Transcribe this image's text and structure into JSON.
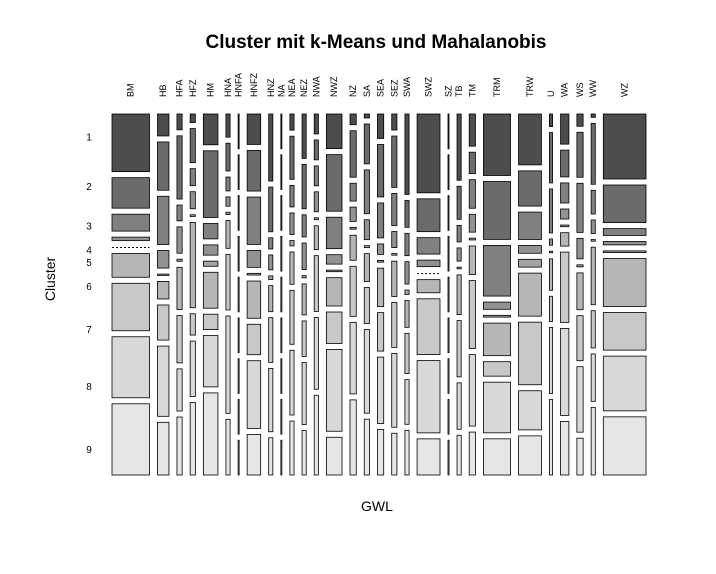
{
  "chart_data": {
    "type": "mosaic",
    "title": "Cluster mit k-Means und Mahalanobis",
    "xlabel": "GWL",
    "ylabel": "Cluster",
    "columns": [
      {
        "name": "BM",
        "width": 36
      },
      {
        "name": "HB",
        "width": 11
      },
      {
        "name": "HFA",
        "width": 5
      },
      {
        "name": "HFZ",
        "width": 5
      },
      {
        "name": "HM",
        "width": 14
      },
      {
        "name": "HNA",
        "width": 4
      },
      {
        "name": "HNFA",
        "width": 1
      },
      {
        "name": "HNFZ",
        "width": 13
      },
      {
        "name": "HNZ",
        "width": 4
      },
      {
        "name": "NA",
        "width": 1
      },
      {
        "name": "NEA",
        "width": 4
      },
      {
        "name": "NEZ",
        "width": 4
      },
      {
        "name": "NWA",
        "width": 4
      },
      {
        "name": "NWZ",
        "width": 15
      },
      {
        "name": "NZ",
        "width": 6
      },
      {
        "name": "SA",
        "width": 5
      },
      {
        "name": "SEA",
        "width": 6
      },
      {
        "name": "SEZ",
        "width": 5
      },
      {
        "name": "SWA",
        "width": 4
      },
      {
        "name": "SWZ",
        "width": 22
      },
      {
        "name": "SZ",
        "width": 1
      },
      {
        "name": "TB",
        "width": 4
      },
      {
        "name": "TM",
        "width": 6
      },
      {
        "name": "TRM",
        "width": 26
      },
      {
        "name": "TRW",
        "width": 22
      },
      {
        "name": "U",
        "width": 3
      },
      {
        "name": "WA",
        "width": 8
      },
      {
        "name": "WS",
        "width": 6
      },
      {
        "name": "WW",
        "width": 4
      },
      {
        "name": "WZ",
        "width": 41
      }
    ],
    "rows": [
      "1",
      "2",
      "3",
      "4",
      "5",
      "6",
      "7",
      "8",
      "9"
    ],
    "row_label_rows": [
      "1",
      "2",
      "3",
      "4",
      "5",
      "6",
      "7",
      "8",
      "9"
    ],
    "row_colors": [
      "#4d4d4d",
      "#6b6b6b",
      "#808080",
      "#929292",
      "#a4a4a4",
      "#b6b6b6",
      "#c8c8c8",
      "#d8d8d8",
      "#e6e6e6"
    ],
    "proportions": [
      [
        17,
        9,
        5,
        1,
        0.3,
        7,
        14,
        18,
        21
      ],
      [
        5,
        11,
        11,
        4,
        0.3,
        4,
        8,
        16,
        12
      ],
      [
        3,
        12,
        3,
        5,
        0.4,
        8,
        9,
        8,
        11
      ],
      [
        2,
        8,
        4,
        4,
        0.4,
        20,
        5,
        13,
        17
      ],
      [
        6,
        13,
        3,
        2,
        1,
        7,
        3,
        10,
        16
      ],
      [
        5,
        6,
        3,
        2,
        0.5,
        6,
        12,
        21,
        12
      ],
      [
        1,
        1,
        1,
        1,
        1,
        1,
        1,
        1,
        1
      ],
      [
        9,
        12,
        14,
        5,
        0.5,
        11,
        9,
        20,
        12
      ],
      [
        18,
        12,
        3,
        4,
        1,
        7,
        12,
        17,
        10
      ],
      [
        1,
        1,
        1,
        1,
        1,
        1,
        1,
        1,
        1
      ],
      [
        3,
        8,
        4,
        4,
        1,
        6,
        10,
        12,
        10
      ],
      [
        10,
        10,
        5,
        6,
        0.5,
        7,
        8,
        14,
        10
      ],
      [
        5,
        5,
        5,
        5,
        0.5,
        6,
        14,
        18,
        20
      ],
      [
        11,
        18,
        10,
        3,
        0.5,
        9,
        10,
        26,
        12
      ],
      [
        3,
        13,
        5,
        4,
        0.5,
        7,
        14,
        20,
        21
      ],
      [
        1,
        10,
        11,
        5,
        0.5,
        7,
        9,
        21,
        14
      ],
      [
        7,
        15,
        10,
        3,
        0.5,
        11,
        11,
        19,
        13
      ],
      [
        5,
        16,
        10,
        5,
        0.5,
        11,
        14,
        23,
        13
      ],
      [
        18,
        6,
        5,
        5,
        1,
        6,
        9,
        10,
        10
      ],
      [
        24,
        10,
        5,
        2,
        0.3,
        4,
        17,
        22,
        11
      ],
      [
        1,
        1,
        1,
        1,
        1,
        1,
        1,
        1,
        1
      ],
      [
        20,
        10,
        5,
        4,
        0.5,
        12,
        17,
        14,
        12
      ],
      [
        9,
        6,
        8,
        5,
        0.5,
        8,
        19,
        20,
        12
      ],
      [
        17,
        16,
        14,
        2,
        0.5,
        9,
        4,
        14,
        10
      ],
      [
        13,
        9,
        7,
        2,
        2,
        11,
        16,
        10,
        10
      ],
      [
        4,
        16,
        14,
        2,
        0.5,
        10,
        8,
        21,
        24
      ],
      [
        9,
        8,
        6,
        3,
        0.5,
        4,
        21,
        26,
        16
      ],
      [
        3,
        11,
        12,
        5,
        0.5,
        9,
        11,
        16,
        9
      ],
      [
        1,
        18,
        7,
        4,
        0.5,
        17,
        11,
        14,
        20
      ],
      [
        19,
        11,
        2,
        1,
        0.5,
        14,
        11,
        16,
        17
      ]
    ],
    "grid": false,
    "legend": "none"
  }
}
